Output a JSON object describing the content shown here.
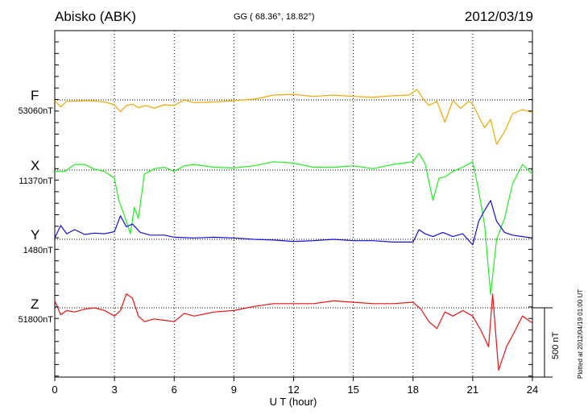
{
  "header": {
    "station": "Abisko (ABK)",
    "coords": "GG ( 68.36°,  18.82°)",
    "date": "2012/03/19"
  },
  "side_note": "Plotted at 2012/04/19 01:00 UT",
  "scale_bar": {
    "label": "500 nT",
    "value_nT": 500
  },
  "chart_data": {
    "type": "line",
    "xlabel": "U T (hour)",
    "xlim": [
      0,
      24
    ],
    "xticks": [
      0,
      3,
      6,
      9,
      12,
      15,
      18,
      21,
      24
    ],
    "xtick_labels": [
      "0",
      "3",
      "6",
      "9",
      "12",
      "15",
      "18",
      "21",
      "24"
    ],
    "grid": "vertical dotted every 3 h, dotted baseline per component",
    "units": "nT",
    "series": [
      {
        "name": "F",
        "baseline_label": "53060nT",
        "baseline": 53060,
        "color": "#f0a800",
        "x": [
          0,
          0.3,
          0.6,
          1,
          1.5,
          2,
          2.5,
          3,
          3.3,
          3.6,
          3.9,
          4.2,
          4.6,
          5,
          5.5,
          6,
          6.5,
          7,
          8,
          9,
          10,
          11,
          12,
          13,
          14,
          15,
          16,
          17,
          17.8,
          18.2,
          18.5,
          18.8,
          19.2,
          19.6,
          20,
          20.4,
          20.8,
          21,
          21.3,
          21.6,
          21.9,
          22.2,
          22.6,
          23,
          23.5,
          24
        ],
        "y": [
          -5,
          -50,
          -10,
          -10,
          -5,
          -8,
          -15,
          -35,
          -85,
          -40,
          -30,
          -55,
          -40,
          -60,
          -35,
          -40,
          0,
          -20,
          -15,
          -5,
          5,
          35,
          40,
          25,
          35,
          25,
          20,
          30,
          35,
          75,
          10,
          -40,
          -10,
          -160,
          -5,
          -60,
          -10,
          -30,
          -120,
          -200,
          -140,
          -320,
          -230,
          -100,
          -70,
          -90
        ]
      },
      {
        "name": "X",
        "baseline_label": "11370nT",
        "baseline": 11370,
        "color": "#22ee22",
        "x": [
          0,
          0.5,
          1,
          1.5,
          2,
          2.5,
          3,
          3.2,
          3.5,
          3.8,
          4,
          4.2,
          4.5,
          5,
          5.5,
          6,
          6.5,
          7,
          8,
          9,
          10,
          11,
          12,
          13,
          14,
          15,
          16,
          17,
          18,
          18.3,
          18.6,
          19,
          19.3,
          19.6,
          20,
          20.5,
          21,
          21.3,
          21.6,
          21.9,
          22.2,
          22.6,
          23,
          23.5,
          24
        ],
        "y": [
          -10,
          -10,
          40,
          40,
          5,
          -10,
          -60,
          -210,
          -330,
          -460,
          -270,
          -350,
          -30,
          10,
          20,
          -10,
          30,
          40,
          20,
          15,
          30,
          60,
          50,
          20,
          20,
          30,
          10,
          40,
          60,
          120,
          50,
          -220,
          -60,
          -50,
          -10,
          20,
          60,
          -150,
          -400,
          -900,
          -500,
          -350,
          -100,
          40,
          -30
        ]
      },
      {
        "name": "Y",
        "baseline_label": "1480nT",
        "baseline": 1480,
        "color": "#1010dd",
        "x": [
          0,
          0.3,
          0.6,
          1,
          1.5,
          2,
          2.5,
          3,
          3.3,
          3.6,
          3.9,
          4.3,
          4.8,
          5.5,
          6,
          7,
          8,
          9,
          10,
          11,
          12,
          13,
          14,
          15,
          16,
          17,
          18,
          18.3,
          18.6,
          19,
          19.5,
          20,
          20.5,
          21,
          21.3,
          21.6,
          21.9,
          22.2,
          22.6,
          23,
          23.5,
          24
        ],
        "y": [
          10,
          100,
          40,
          70,
          35,
          45,
          40,
          55,
          170,
          90,
          110,
          50,
          30,
          30,
          15,
          10,
          15,
          10,
          0,
          -5,
          -15,
          -10,
          0,
          -10,
          -10,
          -20,
          -20,
          70,
          40,
          20,
          50,
          20,
          40,
          -40,
          130,
          210,
          280,
          130,
          50,
          30,
          20,
          10
        ]
      },
      {
        "name": "Z",
        "baseline_label": "51800nT",
        "baseline": 51800,
        "color": "#ee1111",
        "x": [
          0,
          0.3,
          0.6,
          1,
          1.5,
          2,
          2.5,
          3,
          3.3,
          3.6,
          3.9,
          4.2,
          4.5,
          5,
          5.5,
          6,
          6.5,
          7,
          8,
          9,
          10,
          11,
          12,
          13,
          14,
          15,
          16,
          17,
          18,
          18.4,
          18.8,
          19.2,
          19.6,
          20,
          20.5,
          21,
          21.4,
          21.8,
          22,
          22.3,
          22.7,
          23,
          23.5,
          24
        ],
        "y": [
          50,
          -50,
          -20,
          -30,
          -10,
          0,
          -20,
          -60,
          -20,
          100,
          70,
          -60,
          -100,
          -80,
          -90,
          -100,
          -40,
          -60,
          -30,
          -20,
          10,
          30,
          30,
          30,
          50,
          40,
          30,
          30,
          40,
          -10,
          -100,
          -150,
          -30,
          -60,
          -20,
          -60,
          -160,
          -280,
          100,
          -450,
          -280,
          -200,
          -60,
          -110
        ]
      }
    ]
  }
}
